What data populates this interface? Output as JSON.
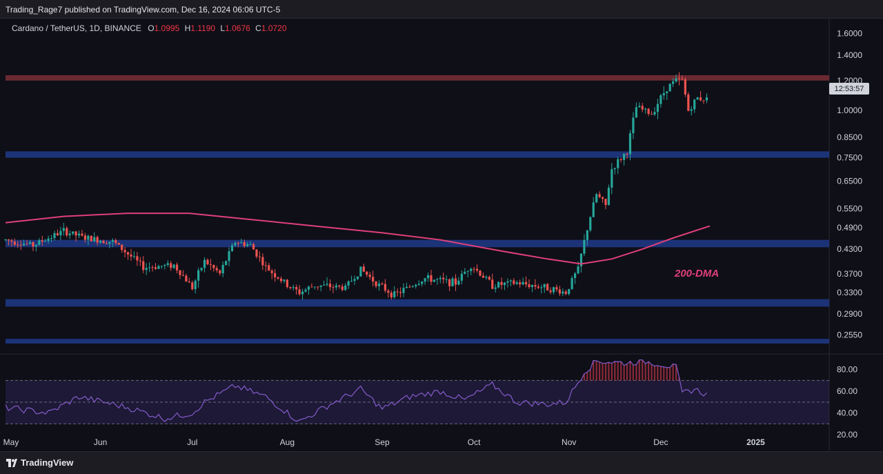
{
  "header": {
    "publish_text": "Trading_Rage7 published on TradingView.com, Dec 16, 2024 06:06 UTC-5"
  },
  "symbol": {
    "name": "Cardano / TetherUS, 1D, BINANCE",
    "o_label": "O",
    "o_value": "1.0995",
    "h_label": "H",
    "h_value": "1.1190",
    "l_label": "L",
    "l_value": "1.0676",
    "c_label": "C",
    "c_value": "1.0720"
  },
  "footer": {
    "brand": "TradingView"
  },
  "colors": {
    "up": "#26a69a",
    "down": "#ef5350",
    "ma": "#e0407a",
    "rsi": "#7e57c2",
    "resistance": "#7a2e36",
    "support": "#1f3a8a"
  },
  "chart_data": [
    {
      "type": "candlestick",
      "title": "Cardano / TetherUS, 1D, BINANCE",
      "y_scale": "log",
      "ylim": [
        0.23,
        1.75
      ],
      "y_ticks": [
        "1.6000",
        "1.4000",
        "1.2000",
        "1.0000",
        "0.8500",
        "0.7500",
        "0.6500",
        "0.5500",
        "0.4900",
        "0.4300",
        "0.3700",
        "0.3300",
        "0.2900",
        "0.2550"
      ],
      "x_ticks": [
        "May",
        "Jun",
        "Jul",
        "Aug",
        "Sep",
        "Oct",
        "Nov",
        "Dec",
        "2025"
      ],
      "x_range": [
        "2024-05-01",
        "2025-01-25"
      ],
      "last_price_countdown": "12:53:57",
      "zones": [
        {
          "kind": "resistance",
          "low": 1.2,
          "high": 1.24
        },
        {
          "kind": "support",
          "low": 0.75,
          "high": 0.78
        },
        {
          "kind": "support",
          "low": 0.435,
          "high": 0.455
        },
        {
          "kind": "support",
          "low": 0.303,
          "high": 0.317
        },
        {
          "kind": "support",
          "low": 0.242,
          "high": 0.249
        }
      ],
      "annotation": "200-DMA",
      "ma_200": {
        "name": "200-DMA",
        "x": [
          "2024-05-01",
          "2024-05-20",
          "2024-06-10",
          "2024-06-30",
          "2024-07-20",
          "2024-08-10",
          "2024-09-01",
          "2024-09-20",
          "2024-10-10",
          "2024-10-25",
          "2024-11-05",
          "2024-11-15",
          "2024-11-25",
          "2024-12-05",
          "2024-12-17"
        ],
        "values": [
          0.505,
          0.525,
          0.535,
          0.535,
          0.515,
          0.495,
          0.475,
          0.455,
          0.425,
          0.405,
          0.393,
          0.405,
          0.43,
          0.46,
          0.495
        ]
      },
      "price_path": {
        "x": [
          "2024-05-01",
          "2024-05-10",
          "2024-05-20",
          "2024-05-27",
          "2024-06-05",
          "2024-06-15",
          "2024-06-25",
          "2024-07-01",
          "2024-07-05",
          "2024-07-10",
          "2024-07-15",
          "2024-07-20",
          "2024-07-25",
          "2024-08-01",
          "2024-08-05",
          "2024-08-10",
          "2024-08-20",
          "2024-08-25",
          "2024-08-31",
          "2024-09-05",
          "2024-09-15",
          "2024-09-25",
          "2024-09-30",
          "2024-10-07",
          "2024-10-15",
          "2024-10-25",
          "2024-10-31",
          "2024-11-04",
          "2024-11-06",
          "2024-11-10",
          "2024-11-13",
          "2024-11-15",
          "2024-11-20",
          "2024-11-23",
          "2024-11-28",
          "2024-12-03",
          "2024-12-06",
          "2024-12-08",
          "2024-12-10",
          "2024-12-13",
          "2024-12-16"
        ],
        "values": [
          0.455,
          0.44,
          0.48,
          0.46,
          0.45,
          0.385,
          0.39,
          0.34,
          0.4,
          0.37,
          0.45,
          0.44,
          0.385,
          0.345,
          0.33,
          0.345,
          0.34,
          0.38,
          0.345,
          0.325,
          0.36,
          0.35,
          0.39,
          0.345,
          0.35,
          0.34,
          0.33,
          0.38,
          0.45,
          0.6,
          0.56,
          0.7,
          0.78,
          1.02,
          0.98,
          1.15,
          1.2,
          1.2,
          1.0,
          1.08,
          1.072
        ]
      }
    },
    {
      "type": "line",
      "title": "RSI",
      "ylim": [
        20,
        90
      ],
      "y_ticks": [
        "80.00",
        "60.00",
        "40.00",
        "20.00"
      ],
      "bands": [
        30,
        50,
        70
      ],
      "x": [
        "2024-05-01",
        "2024-05-15",
        "2024-05-25",
        "2024-06-10",
        "2024-06-22",
        "2024-07-01",
        "2024-07-05",
        "2024-07-15",
        "2024-07-25",
        "2024-08-05",
        "2024-08-15",
        "2024-08-25",
        "2024-09-01",
        "2024-09-10",
        "2024-09-20",
        "2024-09-28",
        "2024-10-07",
        "2024-10-15",
        "2024-10-25",
        "2024-10-31",
        "2024-11-06",
        "2024-11-10",
        "2024-11-20",
        "2024-11-25",
        "2024-12-01",
        "2024-12-06",
        "2024-12-08",
        "2024-12-12",
        "2024-12-16"
      ],
      "values": [
        45,
        40,
        55,
        45,
        35,
        40,
        50,
        65,
        55,
        32,
        48,
        62,
        44,
        55,
        60,
        52,
        66,
        50,
        48,
        50,
        78,
        88,
        86,
        88,
        85,
        82,
        58,
        62,
        57
      ]
    }
  ]
}
